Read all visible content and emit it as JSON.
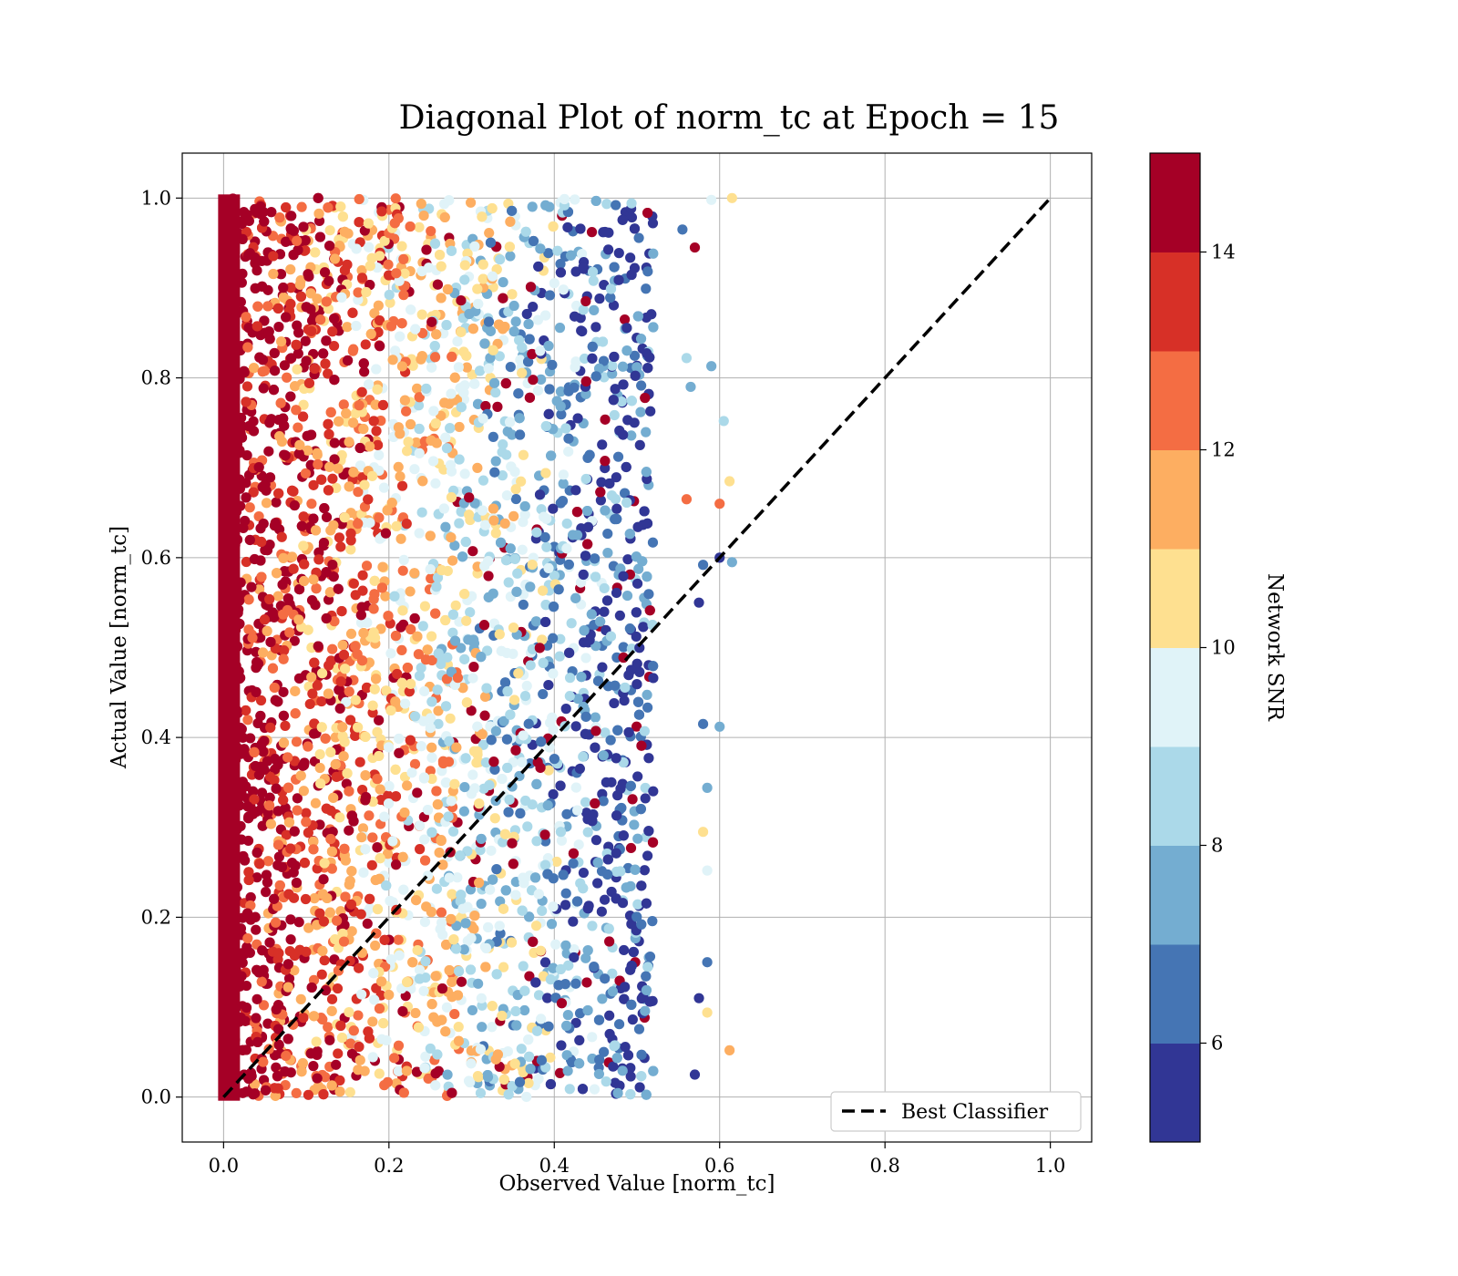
{
  "chart_data": {
    "type": "scatter",
    "title": "Diagonal Plot of norm_tc at Epoch = 15",
    "xlabel": "Observed Value [norm_tc]",
    "ylabel": "Actual Value [norm_tc]",
    "xlim": [
      -0.05,
      1.05
    ],
    "ylim": [
      -0.05,
      1.05
    ],
    "xticks": [
      0.0,
      0.2,
      0.4,
      0.6,
      0.8,
      1.0
    ],
    "xtick_labels": [
      "0.0",
      "0.2",
      "0.4",
      "0.6",
      "0.8",
      "1.0"
    ],
    "yticks": [
      0.0,
      0.2,
      0.4,
      0.6,
      0.8,
      1.0
    ],
    "ytick_labels": [
      "0.0",
      "0.2",
      "0.4",
      "0.6",
      "0.8",
      "1.0"
    ],
    "grid": true,
    "legend": {
      "placement": "lower-right",
      "entries": [
        {
          "label": "Best Classifier",
          "style": "dashed",
          "color": "#000000"
        }
      ]
    },
    "reference_line": {
      "name": "Best Classifier",
      "x": [
        0.0,
        1.0
      ],
      "y": [
        0.0,
        1.0
      ],
      "style": "dashed",
      "color": "#000000"
    },
    "colorbar": {
      "label": "Network SNR",
      "range": [
        5,
        15
      ],
      "ticks": [
        6,
        8,
        10,
        12,
        14
      ],
      "tick_labels": [
        "6",
        "8",
        "10",
        "12",
        "14"
      ],
      "colors": [
        "#313695",
        "#4575b4",
        "#74add1",
        "#abd9e9",
        "#e0f3f8",
        "#fee090",
        "#fdae61",
        "#f46d43",
        "#d73027",
        "#a50026"
      ]
    },
    "points": [
      {
        "x": 0.615,
        "y": 1.0,
        "snr": 10.5
      },
      {
        "x": 0.59,
        "y": 0.998,
        "snr": 9.5
      },
      {
        "x": 0.57,
        "y": 0.945,
        "snr": 14.5
      },
      {
        "x": 0.612,
        "y": 0.685,
        "snr": 10.5
      },
      {
        "x": 0.6,
        "y": 0.66,
        "snr": 12.5
      },
      {
        "x": 0.605,
        "y": 0.752,
        "snr": 8.5
      },
      {
        "x": 0.615,
        "y": 0.595,
        "snr": 7.5
      },
      {
        "x": 0.6,
        "y": 0.6,
        "snr": 5.5
      },
      {
        "x": 0.58,
        "y": 0.592,
        "snr": 6.5
      },
      {
        "x": 0.575,
        "y": 0.55,
        "snr": 5.5
      },
      {
        "x": 0.6,
        "y": 0.412,
        "snr": 7.5
      },
      {
        "x": 0.58,
        "y": 0.415,
        "snr": 6.5
      },
      {
        "x": 0.585,
        "y": 0.344,
        "snr": 7.5
      },
      {
        "x": 0.58,
        "y": 0.295,
        "snr": 10.5
      },
      {
        "x": 0.585,
        "y": 0.252,
        "snr": 9.5
      },
      {
        "x": 0.612,
        "y": 0.052,
        "snr": 11.5
      },
      {
        "x": 0.585,
        "y": 0.094,
        "snr": 10.5
      },
      {
        "x": 0.585,
        "y": 0.15,
        "snr": 6.5
      },
      {
        "x": 0.575,
        "y": 0.11,
        "snr": 5.5
      },
      {
        "x": 0.56,
        "y": 0.822,
        "snr": 8.5
      },
      {
        "x": 0.565,
        "y": 0.79,
        "snr": 7.5
      },
      {
        "x": 0.59,
        "y": 0.813,
        "snr": 7.5
      },
      {
        "x": 0.56,
        "y": 0.665,
        "snr": 12.5
      },
      {
        "x": 0.555,
        "y": 0.965,
        "snr": 6.5
      },
      {
        "x": 0.57,
        "y": 0.025,
        "snr": 5.5
      }
    ]
  }
}
